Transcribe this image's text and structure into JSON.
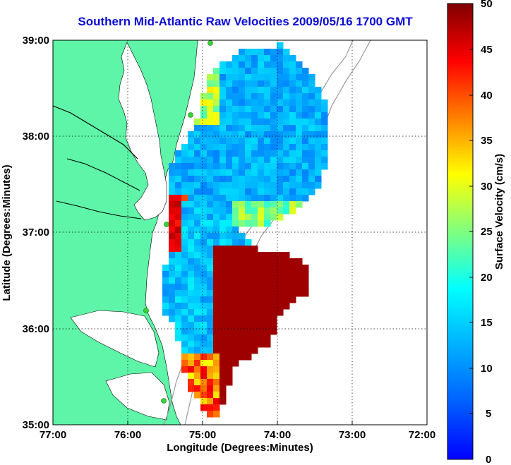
{
  "title": "Southern Mid-Atlantic Raw Velocities 2009/05/16 1700 GMT",
  "map": {
    "xlabel": "Longitude (Degrees:Minutes)",
    "ylabel": "Latitude (Degrees:Minutes)",
    "x_ticks": [
      "77:00",
      "76:00",
      "75:00",
      "74:00",
      "73:00",
      "72:00"
    ],
    "y_ticks": [
      "39:00",
      "38:00",
      "37:00",
      "36:00",
      "35:00"
    ],
    "lon_range": [
      -77,
      -72
    ],
    "lat_range": [
      35,
      39
    ],
    "grid": true,
    "land_color": "#5ef5a8",
    "contour_color": "#9a9a9a",
    "vector_color": "#000000"
  },
  "colorbar": {
    "label": "Surface Velocity (cm/s)",
    "ticks": [
      "50",
      "45",
      "40",
      "35",
      "30",
      "25",
      "20",
      "15",
      "10",
      "5",
      "0"
    ],
    "range": [
      0,
      50
    ],
    "colormap": "jet"
  },
  "stations": [
    "green-dot-1",
    "green-dot-2",
    "green-dot-3",
    "green-dot-4",
    "green-dot-5"
  ]
}
